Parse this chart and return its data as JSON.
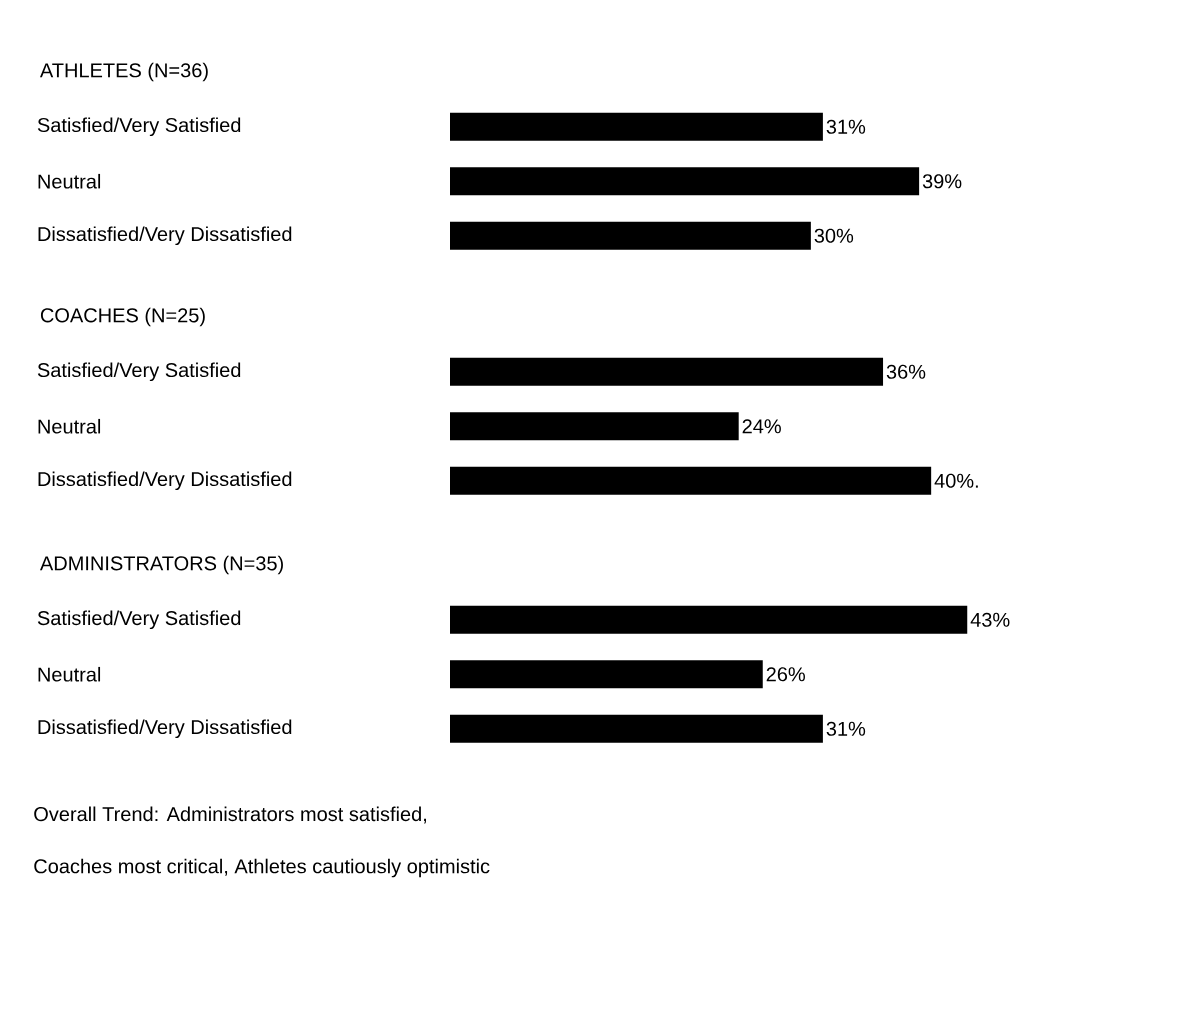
{
  "chart_data": [
    {
      "type": "bar",
      "orientation": "horizontal",
      "title": "ATHLETES (N=36)",
      "categories": [
        "Satisfied/Very Satisfied",
        "Neutral",
        "Dissatisfied/Very Dissatisfied"
      ],
      "values": [
        31,
        39,
        30
      ],
      "value_labels": [
        "31%",
        "39%",
        "30%"
      ],
      "color": "#000000"
    },
    {
      "type": "bar",
      "orientation": "horizontal",
      "title": "COACHES (N=25)",
      "categories": [
        "Satisfied/Very Satisfied",
        "Neutral",
        "Dissatisfied/Very Dissatisfied"
      ],
      "values": [
        36,
        24,
        40
      ],
      "value_labels": [
        "36%",
        "24%",
        "40%."
      ],
      "color": "#000000"
    },
    {
      "type": "bar",
      "orientation": "horizontal",
      "title": "ADMINISTRATORS (N=35)",
      "categories": [
        "Satisfied/Very Satisfied",
        "Neutral",
        "Dissatisfied/Very Dissatisfied"
      ],
      "values": [
        43,
        26,
        31
      ],
      "value_labels": [
        "43%",
        "26%",
        "31%"
      ],
      "color": "#000000",
      "annotations": [
        "Overall Trend: Administrators most satisfied,",
        "Coaches most critical, Athletes cautiously optimistic"
      ]
    }
  ]
}
